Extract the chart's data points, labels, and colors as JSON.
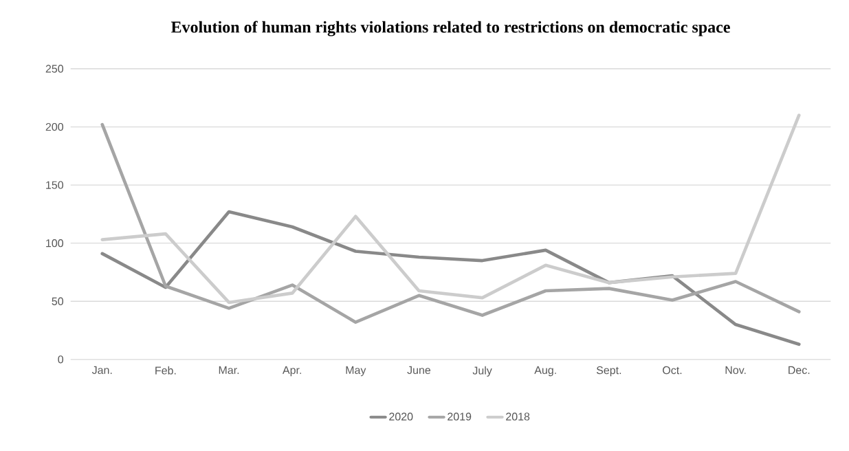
{
  "chart_data": {
    "type": "line",
    "title": "Evolution of human rights violations related to restrictions on democratic space",
    "categories": [
      "Jan.",
      "Feb.",
      "Mar.",
      "Apr.",
      "May",
      "June",
      "July",
      "Aug.",
      "Sept.",
      "Oct.",
      "Nov.",
      "Dec."
    ],
    "series": [
      {
        "name": "2020",
        "color": "#898989",
        "values": [
          91,
          62,
          127,
          114,
          93,
          88,
          85,
          94,
          66,
          72,
          30,
          13
        ]
      },
      {
        "name": "2019",
        "color": "#a5a5a5",
        "values": [
          202,
          63,
          44,
          64,
          32,
          55,
          38,
          59,
          61,
          51,
          67,
          41
        ]
      },
      {
        "name": "2018",
        "color": "#cccccc",
        "values": [
          103,
          108,
          49,
          57,
          123,
          59,
          53,
          81,
          66,
          71,
          74,
          210
        ]
      }
    ],
    "ylim": [
      0,
      250
    ],
    "yticks": [
      0,
      50,
      100,
      150,
      200,
      250
    ],
    "grid": "y",
    "legend": "bottom",
    "marker": "none",
    "line_style": "solid"
  }
}
